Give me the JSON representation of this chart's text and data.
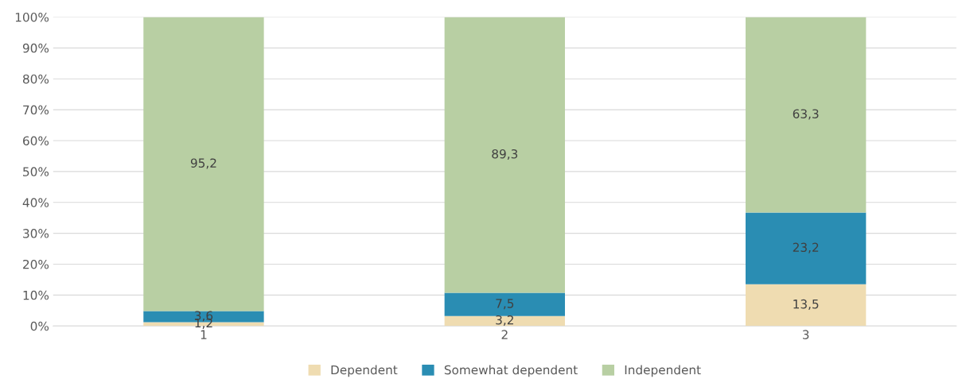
{
  "chart_data": {
    "type": "bar",
    "stacked": true,
    "categories": [
      "1",
      "2",
      "3"
    ],
    "series": [
      {
        "name": "Dependent",
        "color": "#efdcb1",
        "values": [
          1.2,
          3.2,
          13.5
        ],
        "value_labels": [
          "1,2",
          "3,2",
          "13,5"
        ]
      },
      {
        "name": "Somewhat dependent",
        "color": "#2a8db3",
        "values": [
          3.6,
          7.5,
          23.2
        ],
        "value_labels": [
          "3,6",
          "7,5",
          "23,2"
        ]
      },
      {
        "name": "Independent",
        "color": "#b8cfa3",
        "values": [
          95.2,
          89.3,
          63.3
        ],
        "value_labels": [
          "95,2",
          "89,3",
          "63,3"
        ]
      }
    ],
    "ylim": [
      0,
      100
    ],
    "yticks": [
      {
        "value": 0,
        "label": "0%"
      },
      {
        "value": 10,
        "label": "10%"
      },
      {
        "value": 20,
        "label": "20%"
      },
      {
        "value": 30,
        "label": "30%"
      },
      {
        "value": 40,
        "label": "40%"
      },
      {
        "value": 50,
        "label": "50%"
      },
      {
        "value": 60,
        "label": "60%"
      },
      {
        "value": 70,
        "label": "70%"
      },
      {
        "value": 80,
        "label": "80%"
      },
      {
        "value": 90,
        "label": "90%"
      },
      {
        "value": 100,
        "label": "100%"
      }
    ],
    "grid": "y",
    "legend": "bottom"
  }
}
